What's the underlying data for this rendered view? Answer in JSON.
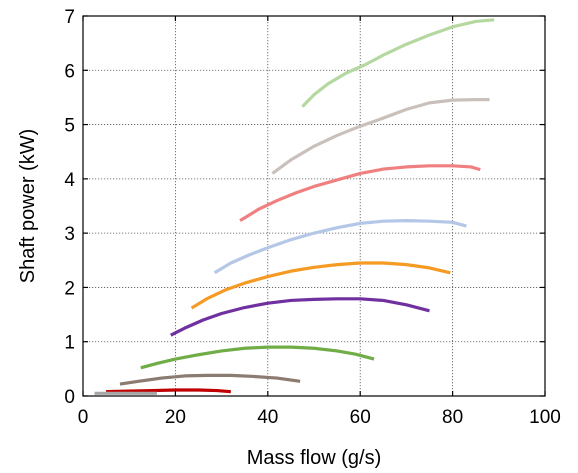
{
  "chart_data": {
    "type": "line",
    "title": "",
    "xlabel": "Mass flow (g/s)",
    "ylabel": "Shaft power (kW)",
    "xlim": [
      0,
      100
    ],
    "ylim": [
      0,
      7
    ],
    "xticks": [
      "0",
      "20",
      "40",
      "60",
      "80",
      "100"
    ],
    "yticks": [
      "0",
      "1",
      "2",
      "3",
      "4",
      "5",
      "6",
      "7"
    ],
    "grid": true,
    "legend": "none",
    "series": [
      {
        "color": "#c00000",
        "points": [
          [
            5,
            0.08
          ],
          [
            10,
            0.09
          ],
          [
            15,
            0.1
          ],
          [
            20,
            0.11
          ],
          [
            25,
            0.11
          ],
          [
            29,
            0.1
          ],
          [
            32,
            0.08
          ]
        ]
      },
      {
        "color": "#8c7b70",
        "points": [
          [
            8,
            0.22
          ],
          [
            12,
            0.27
          ],
          [
            17,
            0.33
          ],
          [
            22,
            0.37
          ],
          [
            27,
            0.38
          ],
          [
            32,
            0.38
          ],
          [
            37,
            0.36
          ],
          [
            42,
            0.33
          ],
          [
            47,
            0.27
          ]
        ]
      },
      {
        "color": "#70ad47",
        "points": [
          [
            12.5,
            0.52
          ],
          [
            16,
            0.6
          ],
          [
            20,
            0.68
          ],
          [
            25,
            0.76
          ],
          [
            30,
            0.83
          ],
          [
            35,
            0.88
          ],
          [
            40,
            0.9
          ],
          [
            45,
            0.9
          ],
          [
            50,
            0.88
          ],
          [
            55,
            0.83
          ],
          [
            59,
            0.77
          ],
          [
            63,
            0.68
          ]
        ]
      },
      {
        "color": "#7030a0",
        "points": [
          [
            19,
            1.12
          ],
          [
            22,
            1.25
          ],
          [
            26,
            1.4
          ],
          [
            30,
            1.52
          ],
          [
            35,
            1.63
          ],
          [
            40,
            1.71
          ],
          [
            45,
            1.76
          ],
          [
            50,
            1.78
          ],
          [
            55,
            1.79
          ],
          [
            60,
            1.79
          ],
          [
            65,
            1.76
          ],
          [
            70,
            1.68
          ],
          [
            75,
            1.57
          ]
        ]
      },
      {
        "color": "#f59a23",
        "points": [
          [
            23.5,
            1.62
          ],
          [
            27,
            1.8
          ],
          [
            31,
            1.96
          ],
          [
            35,
            2.08
          ],
          [
            40,
            2.2
          ],
          [
            45,
            2.3
          ],
          [
            50,
            2.37
          ],
          [
            55,
            2.42
          ],
          [
            60,
            2.45
          ],
          [
            65,
            2.45
          ],
          [
            70,
            2.42
          ],
          [
            75,
            2.36
          ],
          [
            79.5,
            2.27
          ]
        ]
      },
      {
        "color": "#b4c7e7",
        "points": [
          [
            28.5,
            2.27
          ],
          [
            32,
            2.45
          ],
          [
            36,
            2.6
          ],
          [
            40,
            2.73
          ],
          [
            45,
            2.88
          ],
          [
            50,
            3.0
          ],
          [
            55,
            3.1
          ],
          [
            60,
            3.18
          ],
          [
            65,
            3.22
          ],
          [
            70,
            3.23
          ],
          [
            75,
            3.22
          ],
          [
            80,
            3.2
          ],
          [
            83,
            3.13
          ]
        ]
      },
      {
        "color": "#f08080",
        "points": [
          [
            34,
            3.23
          ],
          [
            38,
            3.44
          ],
          [
            42,
            3.6
          ],
          [
            46,
            3.74
          ],
          [
            50,
            3.86
          ],
          [
            55,
            3.98
          ],
          [
            60,
            4.1
          ],
          [
            65,
            4.18
          ],
          [
            70,
            4.22
          ],
          [
            75,
            4.24
          ],
          [
            80,
            4.24
          ],
          [
            84,
            4.22
          ],
          [
            86,
            4.17
          ]
        ]
      },
      {
        "color": "#c9c0bb",
        "points": [
          [
            41,
            4.1
          ],
          [
            45,
            4.35
          ],
          [
            50,
            4.6
          ],
          [
            55,
            4.8
          ],
          [
            60,
            4.97
          ],
          [
            65,
            5.12
          ],
          [
            70,
            5.28
          ],
          [
            75,
            5.4
          ],
          [
            80,
            5.45
          ],
          [
            85,
            5.46
          ],
          [
            88,
            5.46
          ]
        ]
      },
      {
        "color": "#b5d8a0",
        "points": [
          [
            47.5,
            5.33
          ],
          [
            50,
            5.55
          ],
          [
            53,
            5.75
          ],
          [
            57,
            5.95
          ],
          [
            61,
            6.1
          ],
          [
            65,
            6.28
          ],
          [
            70,
            6.48
          ],
          [
            75,
            6.65
          ],
          [
            80,
            6.8
          ],
          [
            85,
            6.9
          ],
          [
            89,
            6.93
          ]
        ]
      },
      {
        "color": "#a6a6a6",
        "points": [
          [
            2.5,
            0.05
          ],
          [
            6,
            0.05
          ],
          [
            10,
            0.05
          ],
          [
            13,
            0.05
          ],
          [
            16,
            0.05
          ]
        ]
      }
    ]
  }
}
